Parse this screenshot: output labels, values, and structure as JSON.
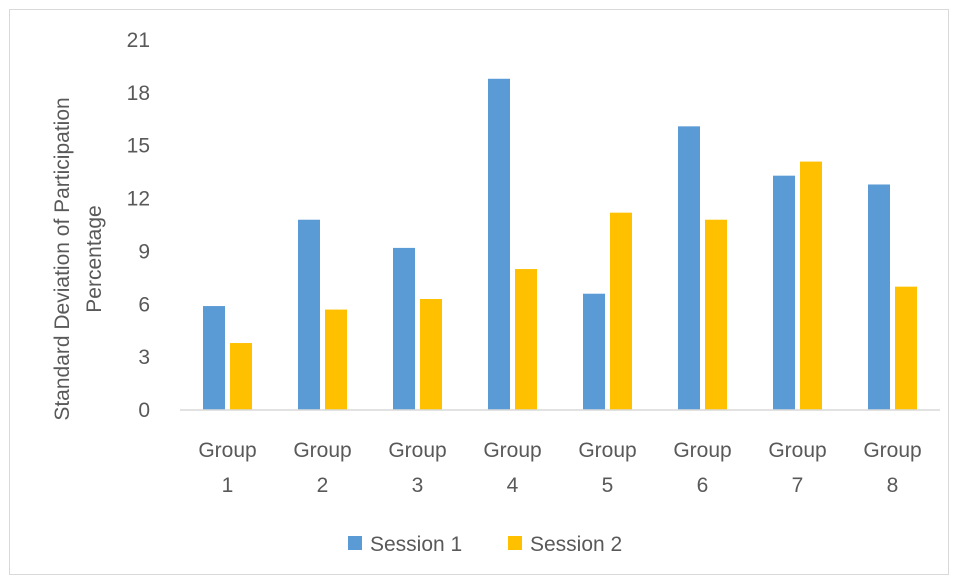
{
  "chart_data": {
    "type": "bar",
    "ylabel": "Standard Deviation of Participation Percentage",
    "ylabel_lines": [
      "Standard Deviation of Participation",
      "Percentage"
    ],
    "categories": [
      [
        "Group",
        "1"
      ],
      [
        "Group",
        "2"
      ],
      [
        "Group",
        "3"
      ],
      [
        "Group",
        "4"
      ],
      [
        "Group",
        "5"
      ],
      [
        "Group",
        "6"
      ],
      [
        "Group",
        "7"
      ],
      [
        "Group",
        "8"
      ]
    ],
    "ylim": [
      0,
      21
    ],
    "yticks": [
      0,
      3,
      6,
      9,
      12,
      15,
      18,
      21
    ],
    "grid": false,
    "legend_position": "bottom",
    "series": [
      {
        "name": "Session 1",
        "color": "#5b9bd5",
        "values": [
          5.9,
          10.8,
          9.2,
          18.8,
          6.6,
          16.1,
          13.3,
          12.8
        ]
      },
      {
        "name": "Session 2",
        "color": "#ffc000",
        "values": [
          3.8,
          5.7,
          6.3,
          8.0,
          11.2,
          10.8,
          14.1,
          7.0
        ]
      }
    ]
  }
}
